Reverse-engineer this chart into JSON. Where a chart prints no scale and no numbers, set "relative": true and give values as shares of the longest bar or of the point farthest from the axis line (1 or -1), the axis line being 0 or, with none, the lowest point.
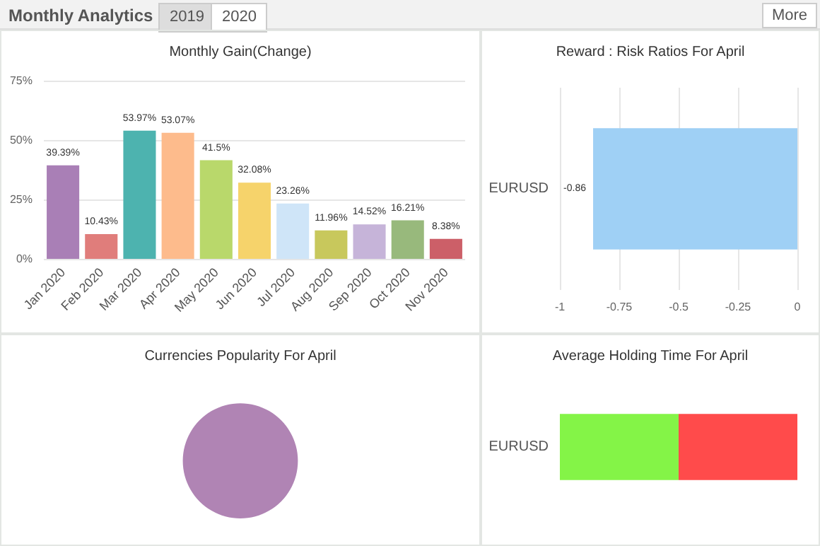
{
  "chart_data": [
    {
      "type": "other",
      "title": "Monthly Analytics",
      "annotations": [
        "2019",
        "2020",
        "More"
      ]
    },
    {
      "type": "bar",
      "title": "Monthly Gain(Change)",
      "categories": [
        "Jan 2020",
        "Feb 2020",
        "Mar 2020",
        "Apr 2020",
        "May 2020",
        "Jun 2020",
        "Jul 2020",
        "Aug 2020",
        "Sep 2020",
        "Oct 2020",
        "Nov 2020"
      ],
      "values": [
        39.39,
        10.43,
        53.97,
        53.07,
        41.5,
        32.08,
        23.26,
        11.96,
        14.52,
        16.21,
        8.38
      ],
      "value_labels": [
        "39.39%",
        "10.43%",
        "53.97%",
        "53.07%",
        "41.5%",
        "32.08%",
        "23.26%",
        "11.96%",
        "14.52%",
        "16.21%",
        "8.38%"
      ],
      "colors": [
        "#a97fb6",
        "#e07d7b",
        "#4db3af",
        "#fdbb8c",
        "#b9d86b",
        "#f6d36b",
        "#cfe5f8",
        "#c8c85c",
        "#c6b4d9",
        "#98b97c",
        "#cc5f68"
      ],
      "ylim": [
        0,
        75
      ],
      "yticks": [
        {
          "value": 0,
          "label": "0%"
        },
        {
          "value": 25,
          "label": "25%"
        },
        {
          "value": 50,
          "label": "50%"
        },
        {
          "value": 75,
          "label": "75%"
        }
      ],
      "grid": "y"
    },
    {
      "type": "bar",
      "title": "Reward : Risk Ratios For April",
      "orientation": "horizontal",
      "categories": [
        "EURUSD"
      ],
      "values": [
        -0.86
      ],
      "color": "#9fd0f5",
      "data_labels": true,
      "xlim": [
        -1,
        0
      ],
      "xticks": [
        -1,
        -0.75,
        -0.5,
        -0.25,
        0
      ],
      "grid": "x"
    },
    {
      "type": "pie",
      "title": "Currencies Popularity For April",
      "categories": [
        null
      ],
      "values": [
        100
      ],
      "colors": [
        "#b084b4"
      ]
    },
    {
      "type": "bar",
      "title": "Average Holding Time For April",
      "orientation": "horizontal",
      "stacked": true,
      "relative": true,
      "categories": [
        "EURUSD"
      ],
      "series": [
        {
          "color": "#84f447",
          "values": [
            0.5
          ]
        },
        {
          "color": "#ff4b4b",
          "values": [
            0.5
          ]
        }
      ]
    }
  ]
}
